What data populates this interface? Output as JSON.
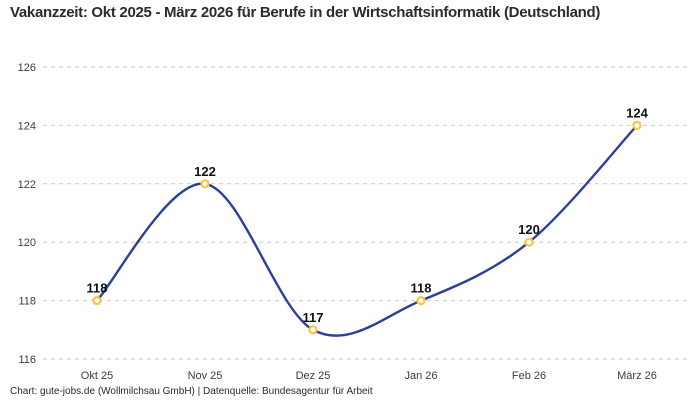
{
  "header": {
    "title": "Vakanzzeit: Okt 2025 - März 2026 für Berufe in der Wirtschaftsinformatik (Deutschland)"
  },
  "footer": {
    "attribution": "Chart: gute-jobs.de (Wollmilchsau GmbH) | Datenquelle: Bundesagentur für Arbeit"
  },
  "colors": {
    "line": "#2b3f9b",
    "marker_ring": "#fbc53d",
    "marker_fill": "#ffffff",
    "grid": "#c9c9c9",
    "tick_text": "#3c3c3c",
    "point_label_text": "#111111",
    "title_text": "#2b2b2b"
  },
  "chart_data": {
    "type": "line",
    "curve": "spline",
    "title": "Vakanzzeit: Okt 2025 - März 2026 für Berufe in der Wirtschaftsinformatik (Deutschland)",
    "categories": [
      "Okt 25",
      "Nov 25",
      "Dez 25",
      "Jan 26",
      "Feb 26",
      "März 26"
    ],
    "values": [
      118,
      122,
      117,
      118,
      120,
      124
    ],
    "point_labels": [
      "118",
      "122",
      "117",
      "118",
      "120",
      "124"
    ],
    "xlabel": "",
    "ylabel": "",
    "ylim": [
      116,
      126
    ],
    "yticks": [
      116,
      118,
      120,
      122,
      124,
      126
    ],
    "grid": "horizontal-dashed",
    "legend_position": "none",
    "source": "Chart: gute-jobs.de (Wollmilchsau GmbH) | Datenquelle: Bundesagentur für Arbeit"
  }
}
